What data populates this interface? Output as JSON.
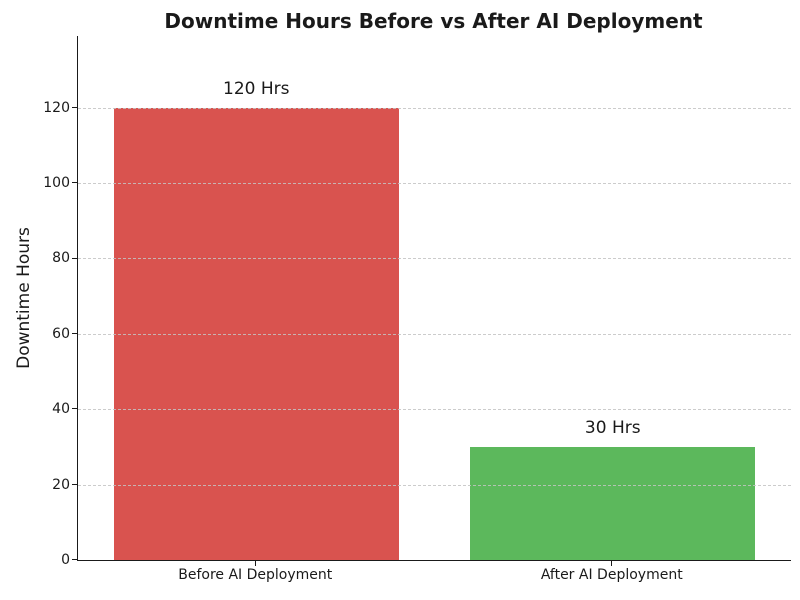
{
  "chart_data": {
    "type": "bar",
    "title": "Downtime Hours Before vs After AI Deployment",
    "categories": [
      "Before AI Deployment",
      "After AI Deployment"
    ],
    "values": [
      120,
      30
    ],
    "value_labels": [
      "120 Hrs",
      "30 Hrs"
    ],
    "bar_colors": [
      "#d9534f",
      "#5cb85c"
    ],
    "xlabel": "",
    "ylabel": "Downtime Hours",
    "ylim": [
      0,
      139
    ],
    "yticks": [
      0,
      20,
      40,
      60,
      80,
      100,
      120
    ],
    "grid": {
      "axis": "y",
      "style": "dashed",
      "color": "#c4c4c4",
      "above_bars": true
    },
    "legend": "none",
    "background_color": "#ffffff",
    "text_color": "#1a1a1a"
  }
}
